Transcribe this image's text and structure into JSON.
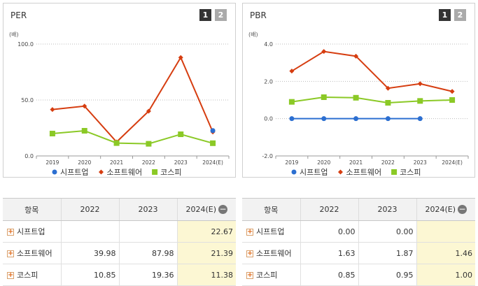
{
  "pager": {
    "p1": "1",
    "p2": "2"
  },
  "per": {
    "title": "PER",
    "unit": "(배)",
    "chart_data": {
      "type": "line",
      "categories": [
        "2019",
        "2020",
        "2021",
        "2022",
        "2023",
        "2024(E)"
      ],
      "yticks": [
        "100.0",
        "50.0",
        "0.0"
      ],
      "ylim": [
        0,
        100
      ],
      "series": [
        {
          "name": "시프트업",
          "color": "#2c6fd1",
          "marker": "circle",
          "values": [
            null,
            null,
            null,
            null,
            null,
            22.67
          ]
        },
        {
          "name": "소프트웨어",
          "color": "#d63d10",
          "marker": "diamond",
          "values": [
            41.5,
            44.5,
            12.5,
            39.98,
            87.98,
            21.39
          ]
        },
        {
          "name": "코스피",
          "color": "#8bc926",
          "marker": "square",
          "values": [
            20,
            22.5,
            11.5,
            10.85,
            19.36,
            11.38
          ]
        }
      ]
    }
  },
  "pbr": {
    "title": "PBR",
    "unit": "(배)",
    "chart_data": {
      "type": "line",
      "categories": [
        "2019",
        "2020",
        "2021",
        "2022",
        "2023",
        "2024(E)"
      ],
      "yticks": [
        "4.0",
        "2.0",
        "0.0",
        "-2.0"
      ],
      "ylim": [
        -2,
        4
      ],
      "series": [
        {
          "name": "시프트업",
          "color": "#2c6fd1",
          "marker": "circle",
          "values": [
            0.0,
            0.0,
            0.0,
            0.0,
            0.0,
            null
          ]
        },
        {
          "name": "소프트웨어",
          "color": "#d63d10",
          "marker": "diamond",
          "values": [
            2.55,
            3.6,
            3.35,
            1.63,
            1.87,
            1.46
          ]
        },
        {
          "name": "코스피",
          "color": "#8bc926",
          "marker": "square",
          "values": [
            0.9,
            1.15,
            1.12,
            0.85,
            0.95,
            1.0
          ]
        }
      ]
    }
  },
  "per_table": {
    "headers": [
      "항목",
      "2022",
      "2023",
      "2024(E)"
    ],
    "rows": [
      {
        "label": "시프트업",
        "v2022": "",
        "v2023": "",
        "v2024": "22.67"
      },
      {
        "label": "소프트웨어",
        "v2022": "39.98",
        "v2023": "87.98",
        "v2024": "21.39"
      },
      {
        "label": "코스피",
        "v2022": "10.85",
        "v2023": "19.36",
        "v2024": "11.38"
      }
    ]
  },
  "pbr_table": {
    "headers": [
      "항목",
      "2022",
      "2023",
      "2024(E)"
    ],
    "rows": [
      {
        "label": "시프트업",
        "v2022": "0.00",
        "v2023": "0.00",
        "v2024": ""
      },
      {
        "label": "소프트웨어",
        "v2022": "1.63",
        "v2023": "1.87",
        "v2024": "1.46"
      },
      {
        "label": "코스피",
        "v2022": "0.85",
        "v2023": "0.95",
        "v2024": "1.00"
      }
    ]
  }
}
